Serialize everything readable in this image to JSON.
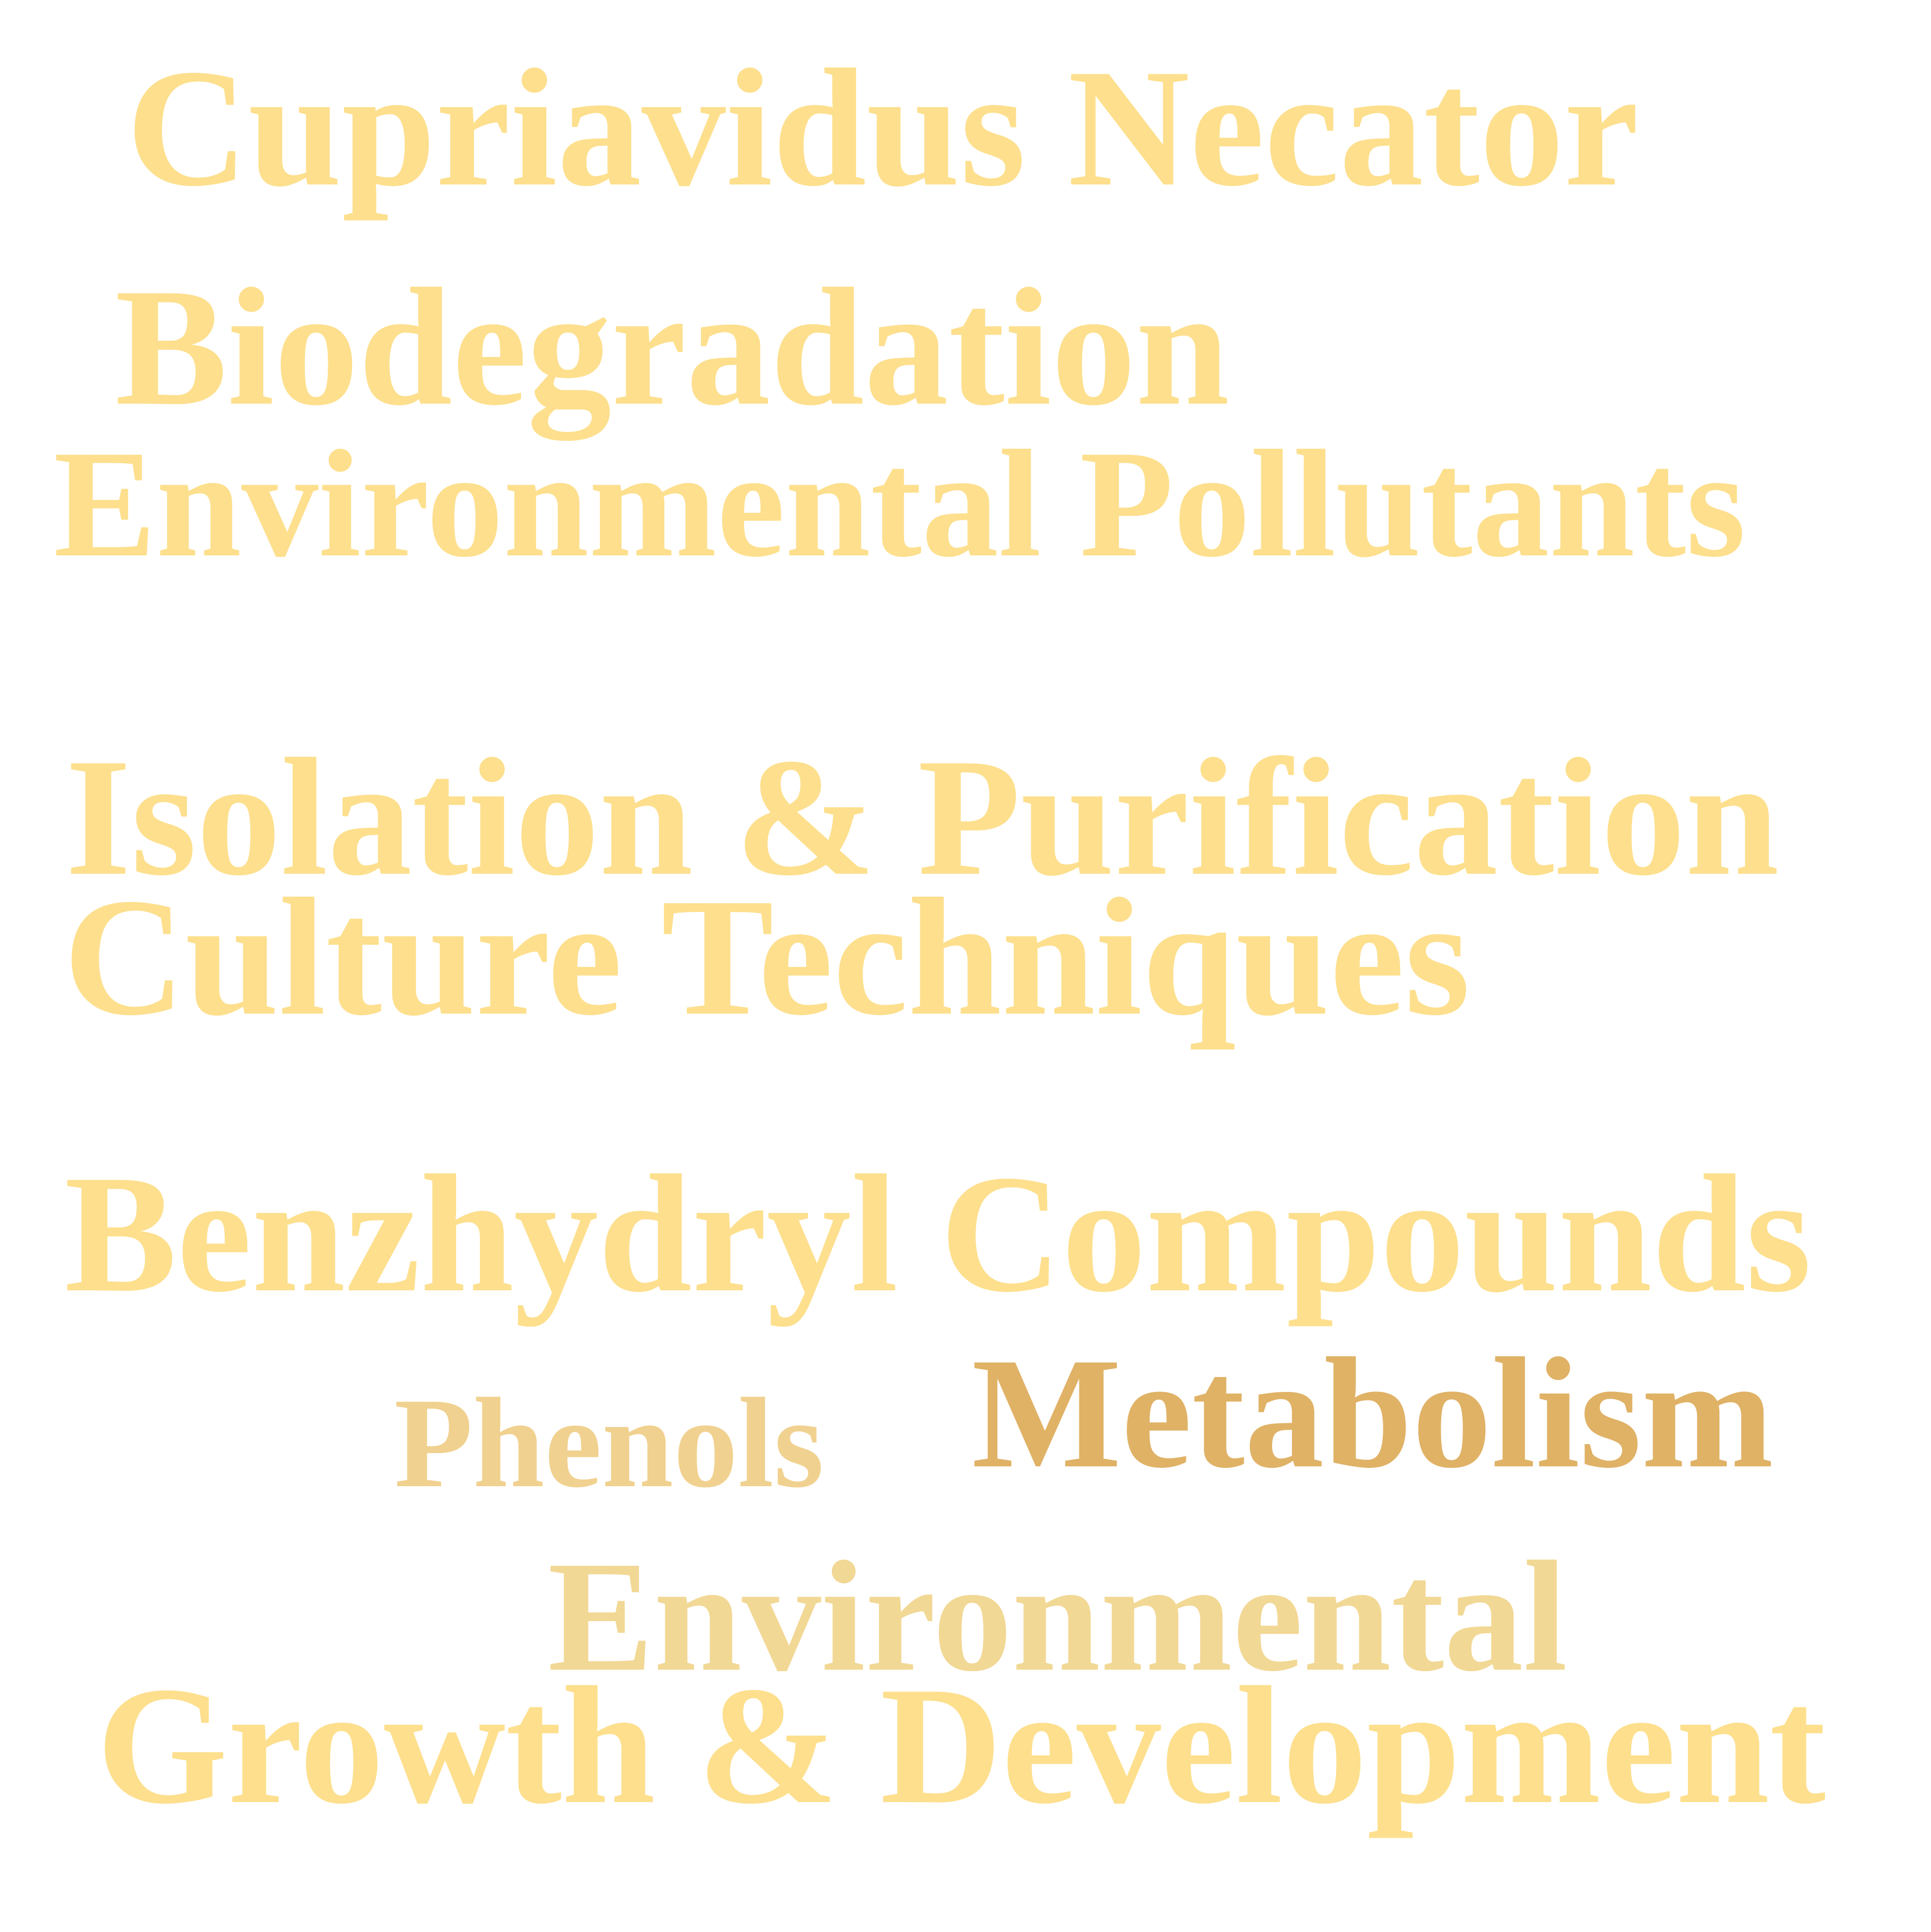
{
  "words": [
    {
      "id": "w-cupriavidus",
      "text": "Cupriavidus Necator",
      "color": "#FDDF8D"
    },
    {
      "id": "w-biodegradation",
      "text": "Biodegradation",
      "color": "#FDDF8D"
    },
    {
      "id": "w-env-pollutants",
      "text": "Environmental Pollutants",
      "color": "#FDDF8D"
    },
    {
      "id": "w-isolation",
      "text": "Isolation & Purification",
      "color": "#FDDF8D"
    },
    {
      "id": "w-culture",
      "text": "Culture Techniques",
      "color": "#FDDF8D"
    },
    {
      "id": "w-benzhydryl",
      "text": "Benzhydryl Compounds",
      "color": "#FDDF8D"
    },
    {
      "id": "w-phenols",
      "text": "Phenols",
      "color": "#F0D18F"
    },
    {
      "id": "w-metabolism",
      "text": "Metabolism",
      "color": "#E0B266"
    },
    {
      "id": "w-environmental",
      "text": "Environmental",
      "color": "#F2D895"
    },
    {
      "id": "w-growth",
      "text": "Growth & Development",
      "color": "#FDDF8D"
    }
  ]
}
